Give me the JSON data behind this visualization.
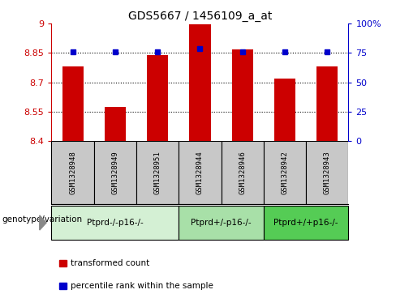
{
  "title": "GDS5667 / 1456109_a_at",
  "samples": [
    "GSM1328948",
    "GSM1328949",
    "GSM1328951",
    "GSM1328944",
    "GSM1328946",
    "GSM1328942",
    "GSM1328943"
  ],
  "bar_values": [
    8.78,
    8.575,
    8.84,
    8.995,
    8.87,
    8.72,
    8.78
  ],
  "percentile_values": [
    76,
    76,
    76,
    79,
    76,
    76,
    76
  ],
  "ylim_left": [
    8.4,
    9.0
  ],
  "ylim_right": [
    0,
    100
  ],
  "yticks_left": [
    8.4,
    8.55,
    8.7,
    8.85,
    9.0
  ],
  "ytick_labels_left": [
    "8.4",
    "8.55",
    "8.7",
    "8.85",
    "9"
  ],
  "yticks_right": [
    0,
    25,
    50,
    75,
    100
  ],
  "ytick_labels_right": [
    "0",
    "25",
    "50",
    "75",
    "100%"
  ],
  "dotted_lines": [
    8.55,
    8.7,
    8.85
  ],
  "bar_color": "#cc0000",
  "dot_color": "#0000cc",
  "groups": [
    {
      "label": "Ptprd-/-p16-/-",
      "n_samples": 3,
      "color": "#d4f0d4"
    },
    {
      "label": "Ptprd+/-p16-/-",
      "n_samples": 2,
      "color": "#a8e0a8"
    },
    {
      "label": "Ptprd+/+p16-/-",
      "n_samples": 2,
      "color": "#55cc55"
    }
  ],
  "legend_items": [
    {
      "label": "transformed count",
      "color": "#cc0000"
    },
    {
      "label": "percentile rank within the sample",
      "color": "#0000cc"
    }
  ],
  "genotype_label": "genotype/variation",
  "bg_color": "#c8c8c8",
  "left_axis_color": "#cc0000",
  "right_axis_color": "#0000cc"
}
